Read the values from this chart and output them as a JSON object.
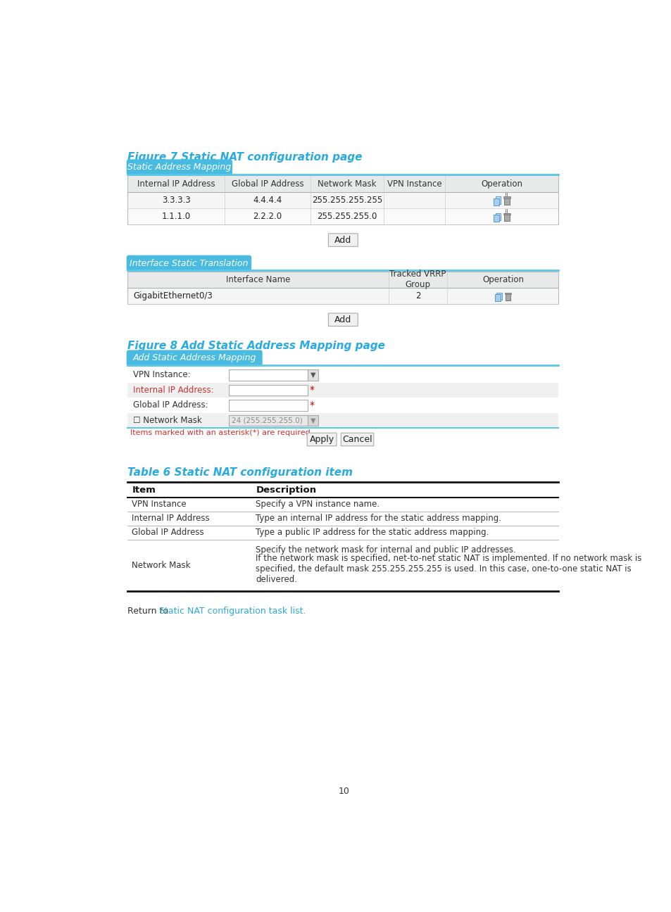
{
  "bg_color": "#ffffff",
  "fig7_title": "Figure 7 Static NAT configuration page",
  "fig8_title": "Figure 8 Add Static Address Mapping page",
  "table6_title": "Table 6 Static NAT configuration item",
  "title_color": "#29ABE2",
  "tab1_header_label": "Static Address Mapping",
  "tab1_cols": [
    "Internal IP Address",
    "Global IP Address",
    "Network Mask",
    "VPN Instance",
    "Operation"
  ],
  "tab2_header_label": "Interface Static Translation",
  "tab2_cols": [
    "Interface Name",
    "Tracked VRRP\nGroup",
    "Operation"
  ],
  "form_header": "Add Static Address Mapping",
  "form_note": "Items marked with an asterisk(*) are required",
  "table6_items": [
    {
      "item": "VPN Instance",
      "desc": "Specify a VPN instance name."
    },
    {
      "item": "Internal IP Address",
      "desc": "Type an internal IP address for the static address mapping."
    },
    {
      "item": "Global IP Address",
      "desc": "Type a public IP address for the static address mapping."
    },
    {
      "item": "Network Mask",
      "desc1": "Specify the network mask for internal and public IP addresses.",
      "desc2": "If the network mask is specified, net-to-net static NAT is implemented. If no network mask is specified, the default mask 255.255.255.255 is used. In this case, one-to-one static NAT is delivered."
    }
  ],
  "return_text_prefix": "Return to ",
  "return_link": "Static NAT configuration task list",
  "page_number": "10",
  "tab_color": "#4ABBE0",
  "tab_line_color": "#5BC8E8",
  "table_header_bg": "#E8EAEA",
  "table_row1_bg": "#F5F5F5",
  "table_row2_bg": "#FAFAFA",
  "form_bg_odd": "#F0F0F0",
  "form_bg_even": "#FFFFFF"
}
